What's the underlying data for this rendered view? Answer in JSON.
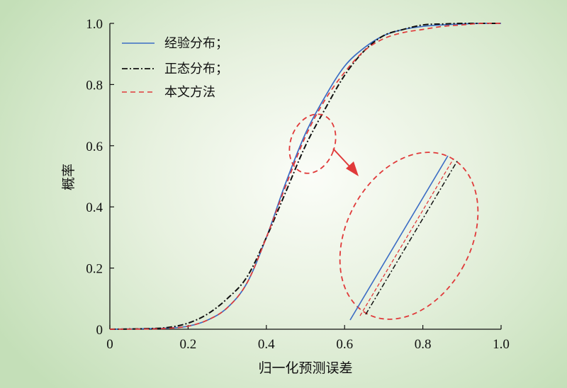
{
  "chart_data": {
    "type": "line",
    "xlabel": "归一化预测误差",
    "ylabel": "概率",
    "xlim": [
      0,
      1.0
    ],
    "ylim": [
      0,
      1.0
    ],
    "x_ticks": [
      "0",
      "0.2",
      "0.4",
      "0.6",
      "0.8",
      "1.0"
    ],
    "y_ticks": [
      "0",
      "0.2",
      "0.4",
      "0.6",
      "0.8",
      "1.0"
    ],
    "grid": false,
    "legend_position": "top-left",
    "series": [
      {
        "name": "经验分布；",
        "color": "#3b6cc4",
        "style": "solid",
        "x": [
          0,
          0.1,
          0.15,
          0.2,
          0.25,
          0.3,
          0.35,
          0.4,
          0.45,
          0.5,
          0.55,
          0.6,
          0.65,
          0.7,
          0.75,
          0.8,
          0.85,
          0.9,
          0.95,
          1.0
        ],
        "y": [
          0,
          0.002,
          0.004,
          0.01,
          0.03,
          0.07,
          0.15,
          0.3,
          0.48,
          0.64,
          0.76,
          0.86,
          0.92,
          0.96,
          0.98,
          0.99,
          0.995,
          0.998,
          1.0,
          1.0
        ]
      },
      {
        "name": "正态分布；",
        "color": "#111111",
        "style": "dashdot",
        "x": [
          0,
          0.1,
          0.15,
          0.2,
          0.25,
          0.3,
          0.35,
          0.4,
          0.45,
          0.5,
          0.55,
          0.6,
          0.65,
          0.7,
          0.75,
          0.8,
          0.85,
          0.9,
          0.95,
          1.0
        ],
        "y": [
          0,
          0.002,
          0.006,
          0.02,
          0.05,
          0.1,
          0.17,
          0.3,
          0.45,
          0.6,
          0.72,
          0.83,
          0.91,
          0.96,
          0.98,
          0.995,
          0.998,
          1.0,
          1.0,
          1.0
        ]
      },
      {
        "name": "本文方法",
        "color": "#e03a3a",
        "style": "dashed",
        "x": [
          0,
          0.1,
          0.15,
          0.2,
          0.25,
          0.3,
          0.35,
          0.4,
          0.45,
          0.5,
          0.55,
          0.6,
          0.65,
          0.7,
          0.75,
          0.8,
          0.85,
          0.9,
          0.95,
          1.0
        ],
        "y": [
          0,
          0.001,
          0.003,
          0.01,
          0.03,
          0.07,
          0.15,
          0.3,
          0.47,
          0.63,
          0.75,
          0.84,
          0.91,
          0.95,
          0.97,
          0.98,
          0.99,
          0.995,
          1.0,
          1.0
        ]
      }
    ],
    "inset": {
      "description_zoom_region_x": [
        0.47,
        0.58
      ],
      "description_zoom_region_y": [
        0.52,
        0.72
      ]
    }
  }
}
